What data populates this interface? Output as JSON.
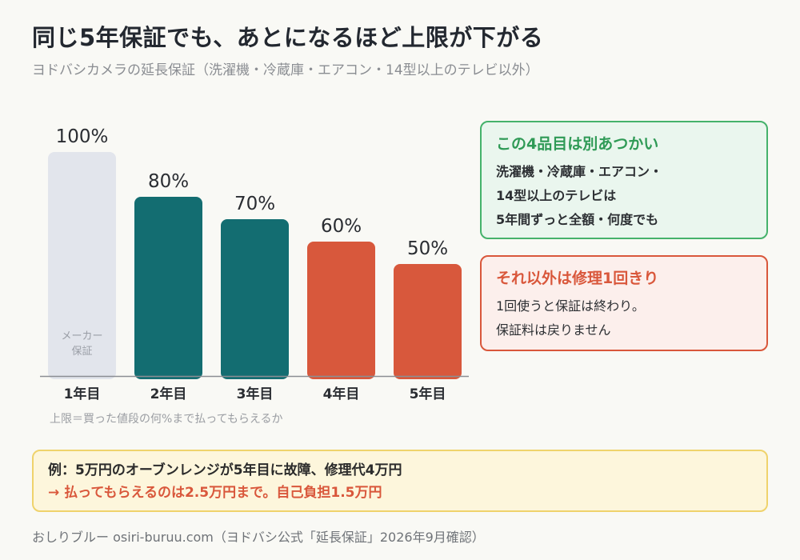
{
  "header": {
    "title": "同じ5年保証でも、あとになるほど上限が下がる",
    "subtitle": "ヨドバシカメラの延長保証（洗濯機・冷蔵庫・エアコン・14型以上のテレビ以外）"
  },
  "chart_data": {
    "type": "bar",
    "categories": [
      "1年目",
      "2年目",
      "3年目",
      "4年目",
      "5年目"
    ],
    "values": [
      100,
      80,
      70,
      60,
      50
    ],
    "value_labels": [
      "100%",
      "80%",
      "70%",
      "60%",
      "50%"
    ],
    "bar_colors": [
      "#e2e5ec",
      "#136d71",
      "#136d71",
      "#d8583c",
      "#d8583c"
    ],
    "bar_inner_label": "メーカー\n保証",
    "ylim": [
      0,
      100
    ],
    "note": "上限＝買った値段の何%まで払ってもらえるか"
  },
  "cards": {
    "special": {
      "title": "この4品目は別あつかい",
      "lines": [
        "洗濯機・冷蔵庫・エアコン・",
        "14型以上のテレビは",
        "5年間ずっと全額・何度でも"
      ]
    },
    "others": {
      "title": "それ以外は修理1回きり",
      "lines": [
        "1回使うと保証は終わり。",
        "保証料は戻りません"
      ]
    }
  },
  "example": {
    "line1": "例：5万円のオーブンレンジが5年目に故障、修理代4万円",
    "line2": "→ 払ってもらえるのは2.5万円まで。自己負担1.5万円"
  },
  "footer": "おしりブルー osiri-buruu.com（ヨドバシ公式「延長保証」2026年9月確認）"
}
